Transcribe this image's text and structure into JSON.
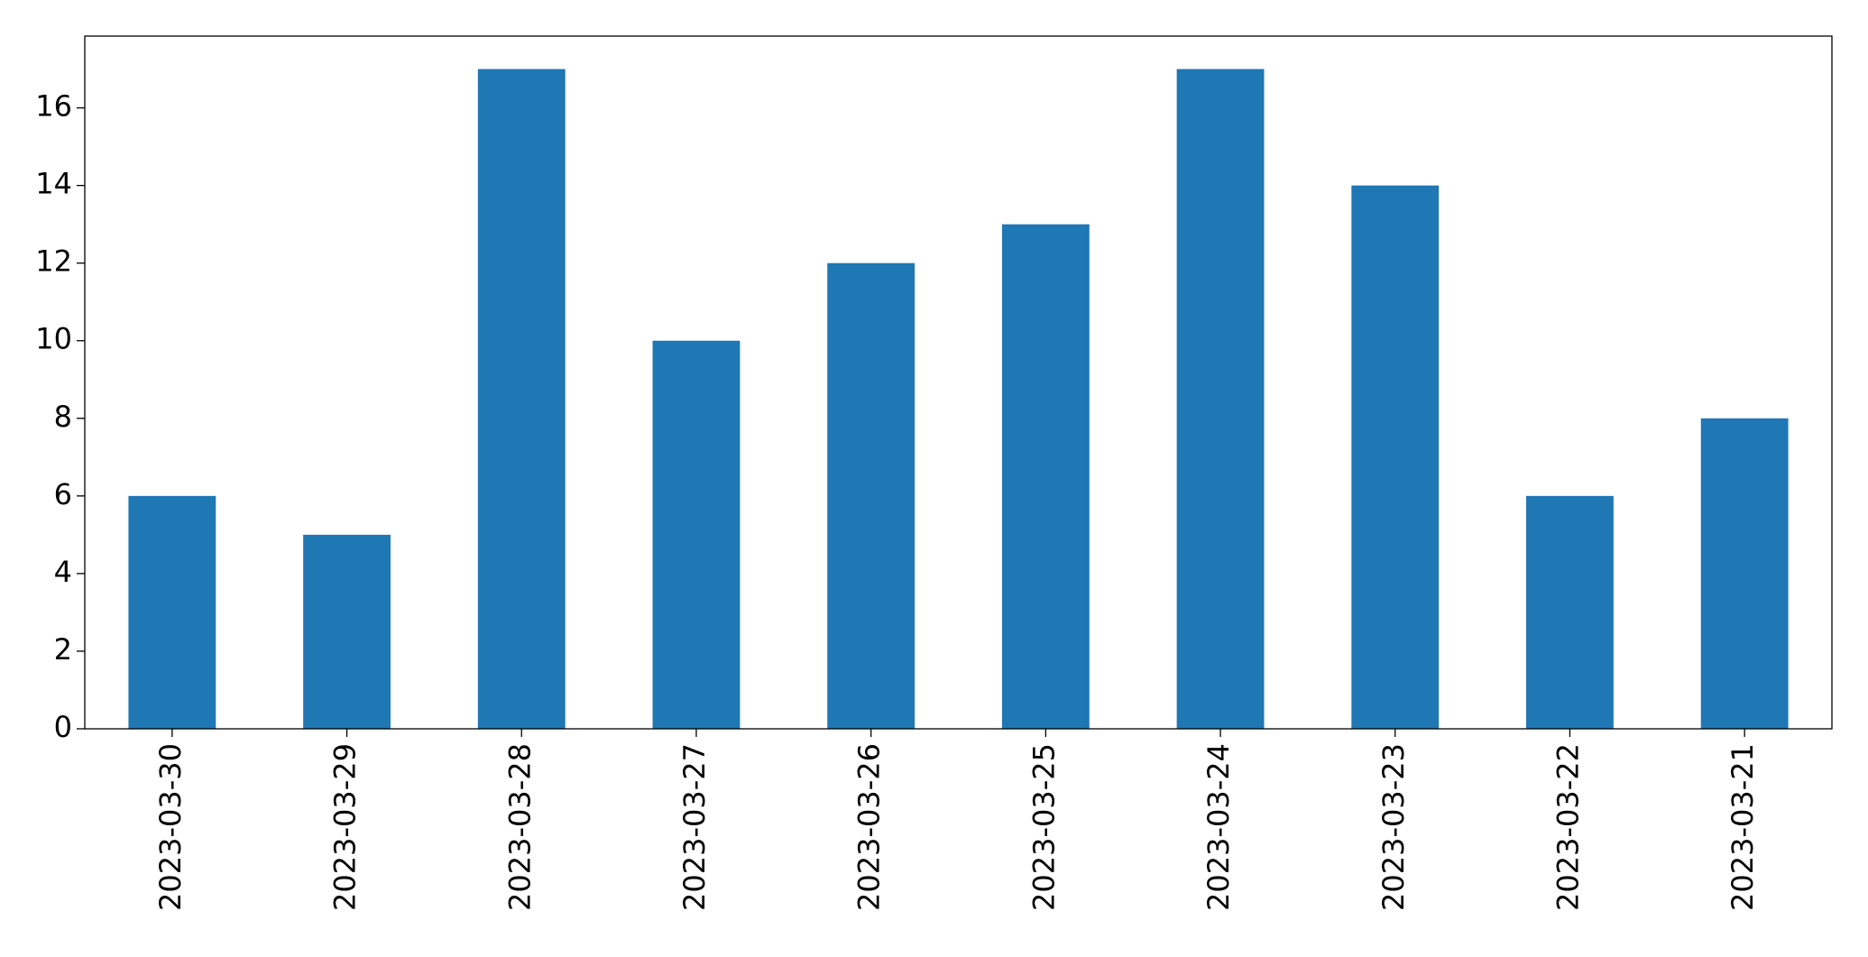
{
  "chart_data": {
    "type": "bar",
    "categories": [
      "2023-03-30",
      "2023-03-29",
      "2023-03-28",
      "2023-03-27",
      "2023-03-26",
      "2023-03-25",
      "2023-03-24",
      "2023-03-23",
      "2023-03-22",
      "2023-03-21"
    ],
    "values": [
      6,
      5,
      17,
      10,
      12,
      13,
      17,
      14,
      6,
      8
    ],
    "color": "#1f77b4",
    "ylim": [
      0,
      17.85
    ],
    "yticks": [
      0,
      2,
      4,
      6,
      8,
      10,
      12,
      14,
      16
    ],
    "grid": false
  }
}
